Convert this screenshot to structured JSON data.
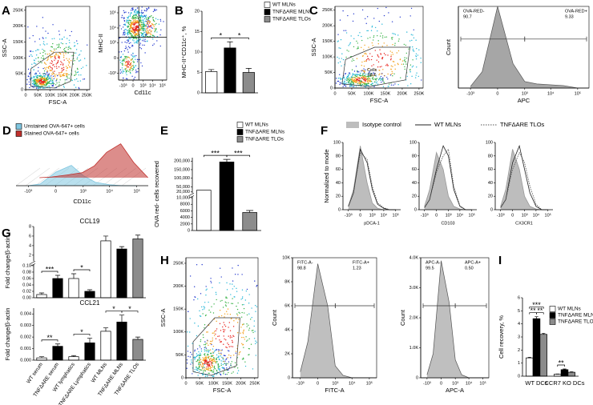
{
  "chart_data": [
    {
      "type": "flow-dot",
      "panel": "A",
      "xlabel": "FSC-A",
      "ylabel": "SSC-A",
      "xscale": "linear",
      "yscale": "linear",
      "xlim": [
        0,
        262144
      ],
      "ylim": [
        0,
        262144
      ],
      "xticks": [
        0,
        {
          "value": 50000,
          "label": "50K"
        },
        {
          "value": 100000,
          "label": "100K"
        },
        {
          "value": 150000,
          "label": "150K"
        },
        {
          "value": 200000,
          "label": "200K"
        },
        {
          "value": 250000,
          "label": "250K"
        }
      ],
      "yticks": [
        0,
        {
          "value": 50000,
          "label": "50K"
        },
        {
          "value": 100000,
          "label": "100K"
        },
        {
          "value": 150000,
          "label": "150K"
        },
        {
          "value": 200000,
          "label": "200K"
        },
        {
          "value": 250000,
          "label": "250K"
        }
      ]
    },
    {
      "type": "flow-dot",
      "xlabel": "Cd11c",
      "ylabel": "MHC-II",
      "xscale": "biexponential",
      "yscale": "biexponential",
      "xlim": [
        -3000,
        262144
      ],
      "ylim": [
        -3000,
        262144
      ],
      "xticks": [
        {
          "value": -1000,
          "label": "-10³"
        },
        0,
        {
          "value": 1000,
          "label": "10³"
        },
        {
          "value": 10000,
          "label": "10⁴"
        },
        {
          "value": 100000,
          "label": "10⁵"
        }
      ],
      "yticks": [
        {
          "value": -1000,
          "label": "-10³"
        },
        0,
        {
          "value": 1000,
          "label": "10³"
        },
        {
          "value": 10000,
          "label": "10⁴"
        },
        {
          "value": 100000,
          "label": "10⁵"
        }
      ]
    },
    {
      "type": "bar",
      "panel": "B",
      "ylabel": "MHC-II⁺CD11c⁺, %",
      "categories": [
        "WT MLNs",
        "TNFΔARE MLNs",
        "TNFΔARE TLOs"
      ],
      "values": [
        5.2,
        11,
        5
      ],
      "errors": [
        0.5,
        1.5,
        1.0
      ],
      "colors": [
        "#ffffff",
        "#000000",
        "#8c8c8c"
      ],
      "ylim": [
        0,
        20
      ],
      "yticks": [
        0,
        5,
        10,
        15,
        20
      ],
      "legend": true,
      "x_labels": false,
      "significance": [
        {
          "pair": [
            0,
            1
          ],
          "label": "*"
        },
        {
          "pair": [
            1,
            2
          ],
          "label": "*"
        }
      ]
    },
    {
      "type": "flow-dot",
      "panel": "C",
      "xlabel": "FSC-A",
      "ylabel": "SSC-A",
      "xscale": "linear",
      "yscale": "linear",
      "xlim": [
        0,
        262144
      ],
      "ylim": [
        0,
        262144
      ],
      "xticks": [
        0,
        {
          "value": 50000,
          "label": "50K"
        },
        {
          "value": 100000,
          "label": "100K"
        },
        {
          "value": 150000,
          "label": "150K"
        },
        {
          "value": 200000,
          "label": "200K"
        },
        {
          "value": 250000,
          "label": "250K"
        }
      ],
      "yticks": [
        0,
        {
          "value": 50000,
          "label": "50K"
        },
        {
          "value": 100000,
          "label": "100K"
        },
        {
          "value": 150000,
          "label": "150K"
        },
        {
          "value": 200000,
          "label": "200K"
        },
        {
          "value": 250000,
          "label": "250K"
        }
      ],
      "gates": [
        {
          "name": "Cells",
          "value": 88.6
        }
      ]
    },
    {
      "type": "flow-histogram",
      "xlabel": "APC",
      "ylabel": "Count",
      "xscale": "biexponential",
      "xlim": [
        -3000,
        262144
      ],
      "ylim": [
        0,
        100
      ],
      "xticks": [
        {
          "value": -1000,
          "label": "-10³"
        },
        0,
        {
          "value": 1000,
          "label": "10³"
        },
        {
          "value": 10000,
          "label": "10⁴"
        },
        {
          "value": 100000,
          "label": "10⁵"
        }
      ],
      "x": [
        -1000,
        -300,
        0,
        300,
        1000,
        3000,
        10000,
        30000,
        100000
      ],
      "values": [
        2,
        20,
        100,
        30,
        8,
        5,
        4,
        3,
        0
      ],
      "color": "#a6a6a6",
      "gates": [
        {
          "name": "OVA-RED-",
          "value": 90.7
        },
        {
          "name": "OVA-RED+",
          "value": 9.33
        }
      ]
    },
    {
      "type": "histogram-3d",
      "panel": "D",
      "xlabel": "CD11c",
      "xscale": "biexponential",
      "xlim": [
        -3000,
        262144
      ],
      "ylim": [
        0,
        100
      ],
      "xticks": [
        {
          "value": -1000,
          "label": "-10³"
        },
        0,
        {
          "value": 1000,
          "label": "10³"
        },
        {
          "value": 10000,
          "label": "10⁴"
        },
        {
          "value": 100000,
          "label": "10⁵"
        }
      ],
      "x": [
        -1000,
        -300,
        0,
        300,
        1000,
        3000,
        10000,
        30000,
        100000
      ],
      "series": [
        {
          "name": "Unstained OVA-647+ cells",
          "color": "#7fc6e0",
          "values": [
            0,
            5,
            40,
            60,
            30,
            10,
            3,
            0,
            0
          ]
        },
        {
          "name": "Stained OVA-647+ cells",
          "color": "#c0302c",
          "values": [
            0,
            2,
            8,
            15,
            35,
            75,
            100,
            45,
            0
          ]
        }
      ]
    },
    {
      "type": "bar",
      "panel": "E",
      "ylabel": "OVA red- cells recovered",
      "categories": [
        "WT MLNs",
        "TNFΔARE MLNs",
        "TNFΔARE TLOs"
      ],
      "values": [
        30000,
        195000,
        5500
      ],
      "errors": [
        null,
        15000,
        600
      ],
      "colors": [
        "#ffffff",
        "#000000",
        "#8c8c8c"
      ],
      "ylim": [
        0,
        220000
      ],
      "ybreak": [
        10000,
        20000
      ],
      "yticks": [
        0,
        2000,
        4000,
        6000,
        8000,
        {
          "value": 10000,
          "label": "10,000"
        },
        {
          "value": 20000,
          "label": "20,000"
        },
        {
          "value": 50000,
          "label": "50,000"
        },
        {
          "value": 100000,
          "label": "100,000"
        },
        {
          "value": 150000,
          "label": "150,000"
        },
        {
          "value": 200000,
          "label": "200,000"
        }
      ],
      "legend": true,
      "x_labels": false,
      "significance": [
        {
          "pair": [
            0,
            1
          ],
          "label": "***"
        },
        {
          "pair": [
            1,
            2
          ],
          "label": "***"
        }
      ]
    },
    {
      "type": "area-panels",
      "panel": "F",
      "ylabel": "Normalized to mode",
      "ylim": [
        0,
        100
      ],
      "yticks": [
        0,
        20,
        40,
        60,
        80,
        100
      ],
      "xscale": "biexponential",
      "xlim": [
        -3000,
        262144
      ],
      "xticks": [
        {
          "value": -1000,
          "label": "-10³"
        },
        0,
        {
          "value": 1000,
          "label": "10³"
        },
        {
          "value": 10000,
          "label": "10⁴"
        },
        {
          "value": 100000,
          "label": "10⁵"
        }
      ],
      "x": [
        -1000,
        -300,
        0,
        300,
        1000,
        3000,
        10000,
        30000,
        100000
      ],
      "series": [
        {
          "name": "Isotype control",
          "color": "#bdbdbd",
          "style": "fill"
        },
        {
          "name": "WT MLNs",
          "color": "#222222",
          "style": "solid"
        },
        {
          "name": "TNFΔARE TLOs",
          "color": "#555555",
          "style": "dotted"
        }
      ],
      "panels": [
        {
          "xlabel": "pDCA-1",
          "series_values": [
            [
              5,
              30,
              95,
              40,
              10,
              2,
              0,
              0,
              0
            ],
            [
              5,
              25,
              90,
              70,
              30,
              8,
              2,
              0,
              0
            ],
            [
              5,
              25,
              85,
              75,
              35,
              10,
              3,
              0,
              0
            ]
          ]
        },
        {
          "xlabel": "CD103",
          "series_values": [
            [
              5,
              30,
              85,
              60,
              20,
              5,
              1,
              0,
              0
            ],
            [
              3,
              15,
              60,
              95,
              80,
              30,
              5,
              0,
              0
            ],
            [
              3,
              15,
              55,
              80,
              90,
              35,
              6,
              0,
              0
            ]
          ]
        },
        {
          "xlabel": "CX3CR1",
          "series_values": [
            [
              5,
              30,
              90,
              60,
              20,
              5,
              1,
              0,
              0
            ],
            [
              3,
              15,
              70,
              95,
              60,
              25,
              5,
              0,
              0
            ],
            [
              3,
              15,
              60,
              85,
              70,
              35,
              8,
              0,
              0
            ]
          ]
        }
      ]
    },
    {
      "type": "bar",
      "panel": "G",
      "title": "CCL19",
      "ylabel": "Fold change/β-actin",
      "values": [
        0.01,
        0.06,
        0.06,
        0.02,
        5,
        3.3,
        5.4
      ],
      "errors": [
        0.005,
        0.01,
        0.015,
        0.005,
        1,
        0.5,
        0.8
      ],
      "colors": [
        "#ffffff",
        "#000000",
        "#ffffff",
        "#000000",
        "#ffffff",
        "#000000",
        "#8c8c8c"
      ],
      "ylim": [
        0,
        8
      ],
      "ybreak": [
        0.1,
        1
      ],
      "yticks": [
        {
          "value": 0,
          "label": "0.00"
        },
        0.02,
        0.04,
        0.06,
        0.08,
        {
          "value": 0.1,
          "label": "0.10"
        },
        2,
        4,
        6,
        8
      ],
      "significance": [
        {
          "pair": [
            0,
            1
          ],
          "label": "***"
        },
        {
          "pair": [
            2,
            3
          ],
          "label": "*"
        }
      ]
    },
    {
      "type": "bar",
      "title": "CCL21",
      "ylabel": "Fold change/β-actin",
      "categories": [
        "WT serum",
        "TNFΔARE serum",
        "WT lymphatics",
        "TNFΔARE Lymphatics",
        "WT MLNs",
        "TNFΔARE MLNs",
        "TNFΔARE TLOs"
      ],
      "values": [
        0.0002,
        0.0012,
        0.0003,
        0.0015,
        0.0025,
        0.0033,
        0.0018
      ],
      "errors": [
        0.0001,
        0.0002,
        0.0001,
        0.0004,
        0.0003,
        0.0006,
        0.0002
      ],
      "colors": [
        "#ffffff",
        "#000000",
        "#ffffff",
        "#000000",
        "#ffffff",
        "#000000",
        "#8c8c8c"
      ],
      "ylim": [
        0,
        0.0045
      ],
      "yticks": [
        {
          "value": 0,
          "label": "0.000"
        },
        0.001,
        0.002,
        0.003,
        0.004
      ],
      "x_labels": true,
      "significance": [
        {
          "pair": [
            0,
            1
          ],
          "label": "**"
        },
        {
          "pair": [
            2,
            3
          ],
          "label": "*"
        },
        {
          "pair": [
            4,
            5
          ],
          "label": "*"
        },
        {
          "pair": [
            5,
            6
          ],
          "label": "*"
        }
      ]
    },
    {
      "type": "flow-dot",
      "panel": "H",
      "xlabel": "FSC-A",
      "ylabel": "SSC-A",
      "xscale": "linear",
      "yscale": "linear",
      "xlim": [
        0,
        262144
      ],
      "ylim": [
        0,
        262144
      ],
      "xticks": [
        0,
        {
          "value": 50000,
          "label": "50K"
        },
        {
          "value": 100000,
          "label": "100K"
        },
        {
          "value": 150000,
          "label": "150K"
        },
        {
          "value": 200000,
          "label": "200K"
        },
        {
          "value": 250000,
          "label": "250K"
        }
      ],
      "yticks": [
        0,
        {
          "value": 50000,
          "label": "50K"
        },
        {
          "value": 100000,
          "label": "100K"
        },
        {
          "value": 150000,
          "label": "150K"
        },
        {
          "value": 200000,
          "label": "200K"
        },
        {
          "value": 250000,
          "label": "250K"
        }
      ]
    },
    {
      "type": "flow-histogram",
      "xlabel": "FITC-A",
      "ylabel": "Count",
      "xscale": "biexponential",
      "xlim": [
        -3000,
        262144
      ],
      "ylim": [
        0,
        10000
      ],
      "yticks": [
        0,
        {
          "value": 2000,
          "label": "2K"
        },
        {
          "value": 4000,
          "label": "4K"
        },
        {
          "value": 6000,
          "label": "6K"
        },
        {
          "value": 8000,
          "label": "8K"
        },
        {
          "value": 10000,
          "label": "10K"
        }
      ],
      "xticks": [
        {
          "value": -1000,
          "label": "-10³"
        },
        0,
        {
          "value": 1000,
          "label": "10³"
        },
        {
          "value": 10000,
          "label": "10⁴"
        },
        {
          "value": 100000,
          "label": "10⁵"
        }
      ],
      "x": [
        -1000,
        -300,
        0,
        300,
        1000,
        3000,
        10000,
        30000,
        100000
      ],
      "values": [
        500,
        3000,
        9500,
        6000,
        1000,
        200,
        0,
        0,
        0
      ],
      "color": "#bfbfbf",
      "gates": [
        {
          "name": "FITC-A-",
          "value": 98.8
        },
        {
          "name": "FITC-A+",
          "value": 1.23
        }
      ]
    },
    {
      "type": "flow-histogram",
      "xlabel": "APC-A",
      "ylabel": "Count",
      "xscale": "biexponential",
      "xlim": [
        -3000,
        262144
      ],
      "ylim": [
        0,
        4000
      ],
      "yticks": [
        0,
        {
          "value": 1000,
          "label": "1.0K"
        },
        {
          "value": 2000,
          "label": "2.0K"
        },
        {
          "value": 3000,
          "label": "3.0K"
        },
        {
          "value": 4000,
          "label": "4.0K"
        }
      ],
      "xticks": [
        {
          "value": -1000,
          "label": "-10³"
        },
        0,
        {
          "value": 1000,
          "label": "10³"
        },
        {
          "value": 10000,
          "label": "10⁴"
        },
        {
          "value": 100000,
          "label": "10⁵"
        }
      ],
      "x": [
        -1000,
        -300,
        0,
        300,
        1000,
        3000,
        10000,
        30000,
        100000
      ],
      "values": [
        100,
        800,
        3900,
        2500,
        600,
        100,
        0,
        0,
        0
      ],
      "color": "#bfbfbf",
      "gates": [
        {
          "name": "APC-A-",
          "value": 99.5
        },
        {
          "name": "APC-A+",
          "value": 0.5,
          "value_label": "0.50"
        }
      ]
    },
    {
      "type": "bar",
      "panel": "I",
      "ylabel": "Cell recovery, %",
      "categories": [
        "WT DCs",
        "CCR7 KO DCs"
      ],
      "series": [
        {
          "name": "WT MLNs",
          "color": "#ffffff",
          "values": [
            1.4,
            0.15
          ],
          "errors": [
            0.05,
            0.02
          ]
        },
        {
          "name": "TNFΔARE MLNs",
          "color": "#000000",
          "values": [
            4.4,
            0.5
          ],
          "errors": [
            0.15,
            0.05
          ]
        },
        {
          "name": "TNFΔARE TLOs",
          "color": "#8c8c8c",
          "values": [
            3.2,
            0.3
          ],
          "errors": [
            0.08,
            0.04
          ]
        }
      ],
      "ylim": [
        0,
        6
      ],
      "yticks": [
        0,
        1,
        2,
        3,
        4,
        5,
        6
      ],
      "legend": true,
      "x_labels": true,
      "significance": [
        {
          "group": 0,
          "pair": [
            0,
            2
          ],
          "label": "***"
        },
        {
          "group": 0,
          "pair": [
            0,
            1
          ],
          "label": "**"
        },
        {
          "group": 0,
          "pair": [
            1,
            2
          ],
          "label": "**"
        },
        {
          "group": 1,
          "pair": [
            0,
            1
          ],
          "label": "**"
        }
      ]
    }
  ]
}
